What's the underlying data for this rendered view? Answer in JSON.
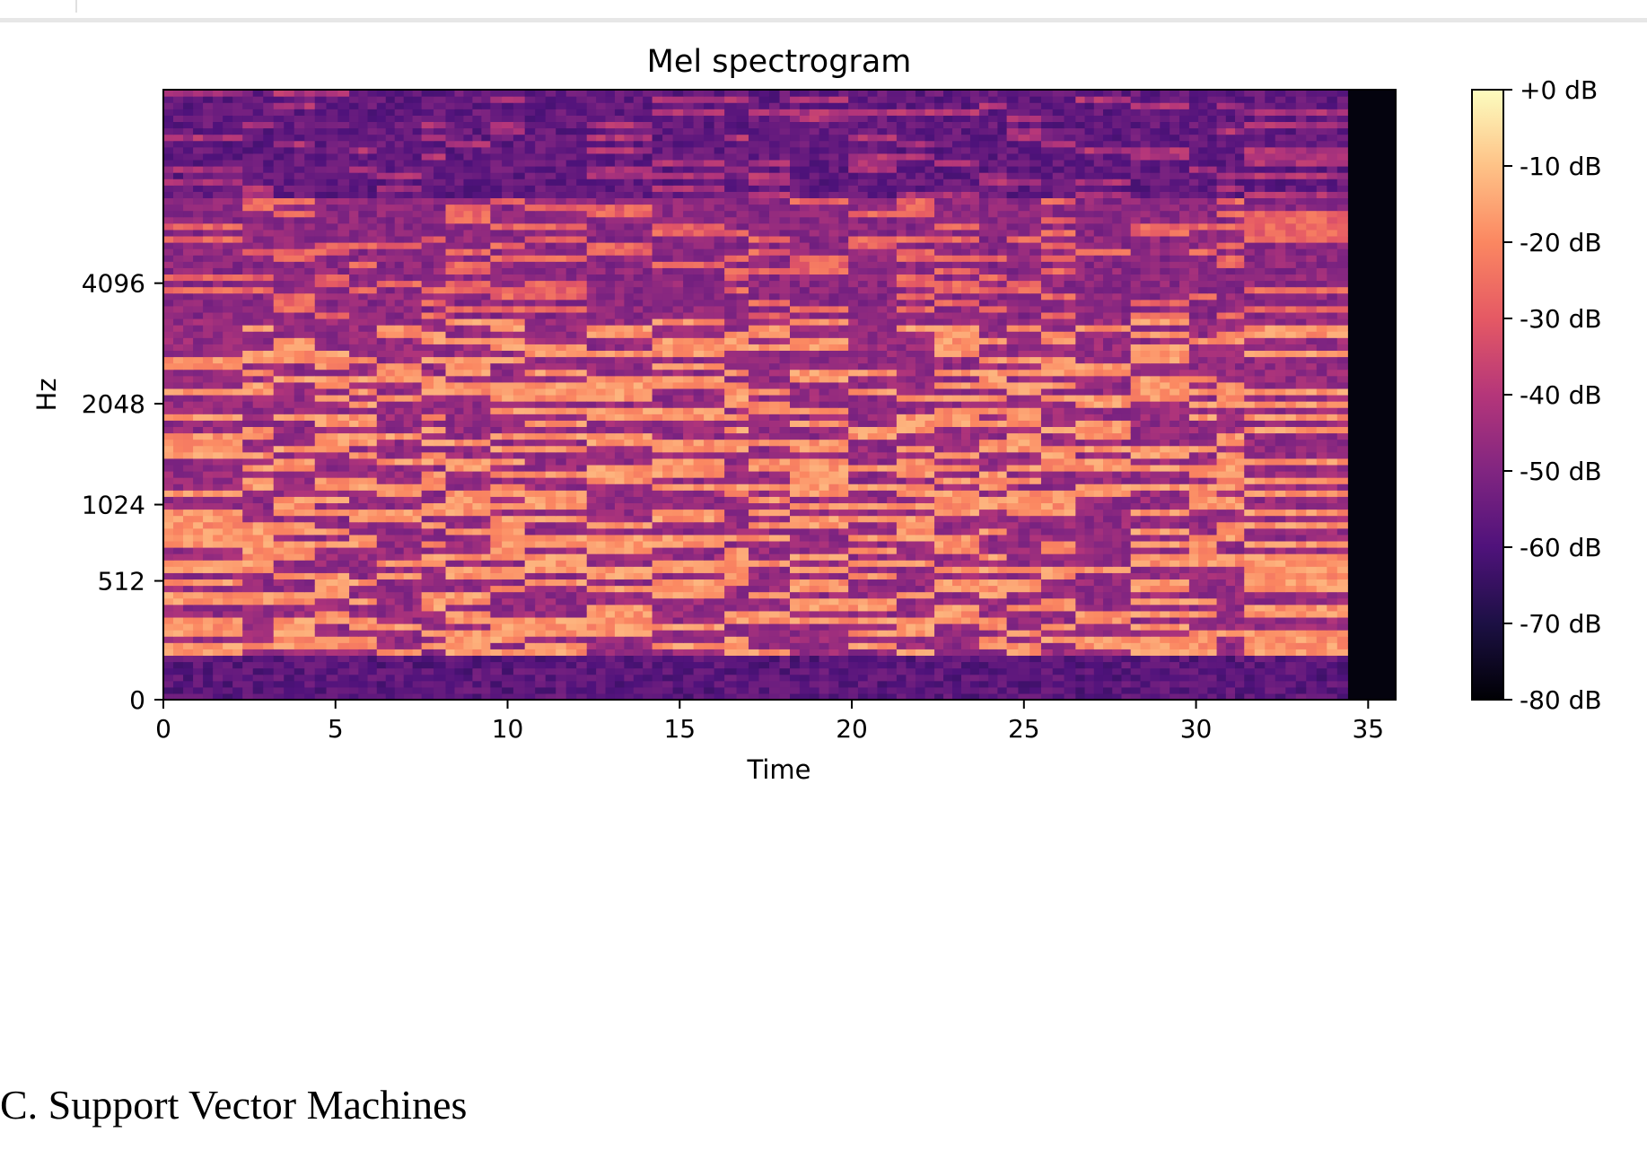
{
  "section_heading": "C. Support Vector Machines",
  "chart_data": {
    "type": "heatmap",
    "title": "Mel spectrogram",
    "xlabel": "Time",
    "ylabel": "Hz",
    "x_ticks": [
      0,
      5,
      10,
      15,
      20,
      25,
      30,
      35
    ],
    "x_tick_labels": [
      "0",
      "5",
      "10",
      "15",
      "20",
      "25",
      "30",
      "35"
    ],
    "xlim": [
      0,
      35.8
    ],
    "y_ticks": [
      0,
      512,
      1024,
      2048,
      4096
    ],
    "y_tick_labels": [
      "0",
      "512",
      "1024",
      "2048",
      "4096"
    ],
    "y_scale": "mel",
    "ylim": [
      0,
      11025
    ],
    "signal_end_time": 34.4,
    "colorbar": {
      "label_values": [
        0,
        -10,
        -20,
        -30,
        -40,
        -50,
        -60,
        -70,
        -80
      ],
      "labels": [
        "+0 dB",
        "-10 dB",
        "-20 dB",
        "-30 dB",
        "-40 dB",
        "-50 dB",
        "-60 dB",
        "-70 dB",
        "-80 dB"
      ],
      "range": [
        -80,
        0
      ],
      "colormap": "magma",
      "colors": [
        "#000004",
        "#1c1044",
        "#4f127b",
        "#812581",
        "#b5367a",
        "#e55964",
        "#fb8761",
        "#fec287",
        "#fcfdbf"
      ]
    },
    "note_segments_sec": [
      0,
      2.3,
      3.2,
      4.4,
      5.4,
      6.2,
      7.5,
      8.2,
      9.5,
      10.5,
      12.3,
      14.2,
      16.3,
      17.0,
      18.2,
      19.9,
      21.3,
      22.4,
      23.7,
      24.5,
      25.5,
      26.5,
      28.1,
      29.8,
      30.6,
      31.4,
      34.4
    ],
    "grid": false,
    "legend": "colorbar-right"
  }
}
